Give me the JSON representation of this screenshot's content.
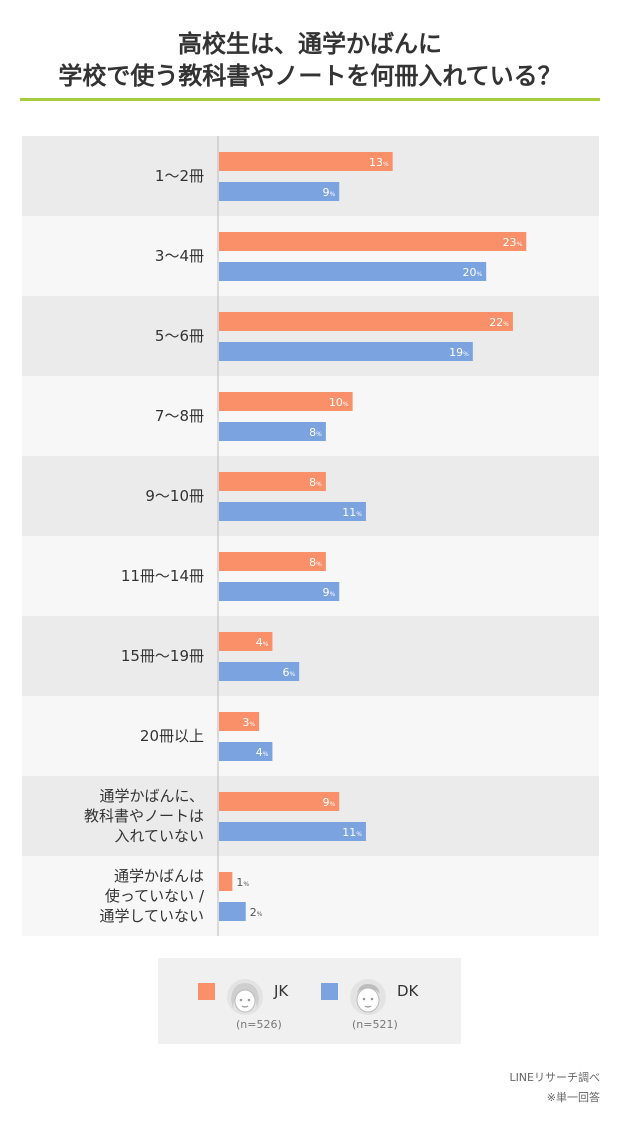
{
  "title": {
    "line1": "高校生は、通学かばんに",
    "line2": "学校で使う教科書やノートを何冊入れている？"
  },
  "colors": {
    "jk": "#f9906a",
    "dk": "#7ba3e0",
    "rule": "#a8cc3f",
    "row_dark": "#ebebeb",
    "row_light": "#f7f7f7"
  },
  "chart_data": {
    "type": "bar",
    "orientation": "horizontal",
    "unit": "%",
    "categories": [
      [
        "1〜2冊"
      ],
      [
        "3〜4冊"
      ],
      [
        "5〜6冊"
      ],
      [
        "7〜8冊"
      ],
      [
        "9〜10冊"
      ],
      [
        "11冊〜14冊"
      ],
      [
        "15冊〜19冊"
      ],
      [
        "20冊以上"
      ],
      [
        "通学かばんに、",
        "教科書やノートは",
        "入れていない"
      ],
      [
        "通学かばんは",
        "使っていない /",
        "通学していない"
      ]
    ],
    "series": [
      {
        "name": "JK",
        "values": [
          13,
          23,
          22,
          10,
          8,
          8,
          4,
          3,
          9,
          1
        ]
      },
      {
        "name": "DK",
        "values": [
          9,
          20,
          19,
          8,
          11,
          9,
          6,
          4,
          11,
          2
        ]
      }
    ],
    "xlim": [
      0,
      25
    ]
  },
  "legend": {
    "jk_label": "JK",
    "jk_n": "(n=526)",
    "jk_avatar": "girl-face-icon",
    "dk_label": "DK",
    "dk_n": "(n=521)",
    "dk_avatar": "boy-face-icon"
  },
  "source": {
    "line1": "LINEリサーチ調べ",
    "line2": "※単一回答"
  }
}
